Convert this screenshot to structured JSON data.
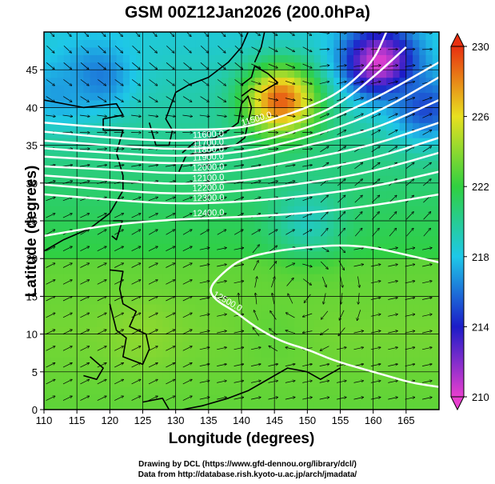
{
  "title": "GSM 00Z12Jan2026 (200.0hPa)",
  "xlabel": "Longitude (degrees)",
  "ylabel": "Latitude  (degrees)",
  "credits": {
    "line1": "Drawing by DCL (https://www.gfd-dennou.org/library/dcl/)",
    "line2": "Data from http://database.rish.kyoto-u.ac.jp/arch/jmadata/"
  },
  "colors": {
    "stream": "#000000",
    "contour": "#ffffff",
    "coast": "#000000"
  },
  "chart_data": {
    "type": "heatmap",
    "title": "GSM 00Z12Jan2026 (200.0hPa)",
    "xlabel": "Longitude (degrees)",
    "ylabel": "Latitude  (degrees)",
    "xlim": [
      110,
      170
    ],
    "ylim": [
      0,
      50
    ],
    "xticks": [
      110,
      115,
      120,
      125,
      130,
      135,
      140,
      145,
      150,
      155,
      160,
      165
    ],
    "yticks": [
      0,
      5,
      10,
      15,
      20,
      25,
      30,
      35,
      40,
      45
    ],
    "grid_lon_step": 5,
    "grid_lat_step": 5,
    "colorbar": {
      "min": 210,
      "max": 230,
      "ticks": [
        210,
        214,
        218,
        222,
        226,
        230
      ],
      "colors": [
        "#e83fcf",
        "#1c1cc8",
        "#1ec8e8",
        "#30d040",
        "#e8e020",
        "#e83010"
      ]
    },
    "temperature_features": [
      {
        "lon": 146,
        "lat": 41,
        "value": 229
      },
      {
        "lon": 161,
        "lat": 46,
        "value": 210
      },
      {
        "lon": 118,
        "lat": 44,
        "value": 216
      },
      {
        "lon": 168,
        "lat": 40,
        "value": 215
      },
      {
        "lon": 112,
        "lat": 42,
        "value": 217
      },
      {
        "lon": 150,
        "lat": 25,
        "value": 219
      },
      {
        "lon": 125,
        "lat": 10,
        "value": 224
      },
      {
        "lon": 145,
        "lat": 10,
        "value": 223
      }
    ],
    "contours": [
      {
        "label": "11500.0",
        "points": [
          [
            110,
            38
          ],
          [
            120,
            37.3
          ],
          [
            130,
            37
          ],
          [
            140,
            37.2
          ],
          [
            145,
            38.5
          ],
          [
            150,
            40
          ],
          [
            155,
            42
          ],
          [
            160,
            46
          ],
          [
            162,
            50
          ]
        ]
      },
      {
        "label": "11600.0",
        "points": [
          [
            110,
            36.8
          ],
          [
            120,
            36
          ],
          [
            130,
            35.5
          ],
          [
            140,
            36
          ],
          [
            150,
            38.5
          ],
          [
            155,
            40.5
          ],
          [
            160,
            44
          ],
          [
            165,
            48
          ]
        ]
      },
      {
        "label": "11700.0",
        "points": [
          [
            110,
            35.6
          ],
          [
            120,
            35
          ],
          [
            130,
            34.4
          ],
          [
            140,
            34.9
          ],
          [
            150,
            37.2
          ],
          [
            160,
            41
          ],
          [
            170,
            46
          ]
        ]
      },
      {
        "label": "11800.0",
        "points": [
          [
            110,
            34.6
          ],
          [
            120,
            34
          ],
          [
            130,
            33.5
          ],
          [
            140,
            34
          ],
          [
            150,
            36
          ],
          [
            160,
            39
          ],
          [
            170,
            44
          ]
        ]
      },
      {
        "label": "11900.0",
        "points": [
          [
            110,
            33.5
          ],
          [
            120,
            33
          ],
          [
            130,
            32.5
          ],
          [
            140,
            33
          ],
          [
            150,
            35
          ],
          [
            160,
            37
          ],
          [
            170,
            41
          ]
        ]
      },
      {
        "label": "12000.0",
        "points": [
          [
            110,
            32.2
          ],
          [
            120,
            31.8
          ],
          [
            130,
            31.2
          ],
          [
            140,
            31.6
          ],
          [
            150,
            33.2
          ],
          [
            160,
            35
          ],
          [
            170,
            38
          ]
        ]
      },
      {
        "label": "12100.0",
        "points": [
          [
            110,
            31
          ],
          [
            120,
            30.4
          ],
          [
            130,
            29.8
          ],
          [
            140,
            30.2
          ],
          [
            150,
            31.6
          ],
          [
            160,
            33.2
          ],
          [
            170,
            36
          ]
        ]
      },
      {
        "label": "12200.0",
        "points": [
          [
            110,
            29.8
          ],
          [
            120,
            29.1
          ],
          [
            130,
            28.5
          ],
          [
            140,
            28.9
          ],
          [
            150,
            30
          ],
          [
            160,
            31.5
          ],
          [
            170,
            34
          ]
        ]
      },
      {
        "label": "12300.0",
        "points": [
          [
            110,
            28.5
          ],
          [
            120,
            27.8
          ],
          [
            130,
            27.2
          ],
          [
            140,
            27.5
          ],
          [
            150,
            28.3
          ],
          [
            160,
            29.5
          ],
          [
            170,
            31.5
          ]
        ]
      },
      {
        "label": "12400.0",
        "points": [
          [
            110,
            23
          ],
          [
            120,
            24.5
          ],
          [
            130,
            25.2
          ],
          [
            140,
            25.5
          ],
          [
            150,
            26
          ],
          [
            160,
            27
          ],
          [
            170,
            28.5
          ]
        ]
      },
      {
        "label": "12500.0",
        "points": [
          [
            170,
            19.5
          ],
          [
            165,
            20.5
          ],
          [
            160,
            21.5
          ],
          [
            155,
            21.8
          ],
          [
            150,
            21.5
          ],
          [
            145,
            21
          ],
          [
            140,
            20
          ],
          [
            137,
            18
          ],
          [
            135,
            16
          ],
          [
            136,
            14.5
          ],
          [
            139,
            13
          ],
          [
            142,
            11
          ],
          [
            146,
            9
          ],
          [
            150,
            8
          ],
          [
            154,
            6.5
          ],
          [
            158,
            5.5
          ],
          [
            162,
            4.5
          ],
          [
            166,
            3.5
          ],
          [
            170,
            3
          ]
        ]
      }
    ]
  }
}
